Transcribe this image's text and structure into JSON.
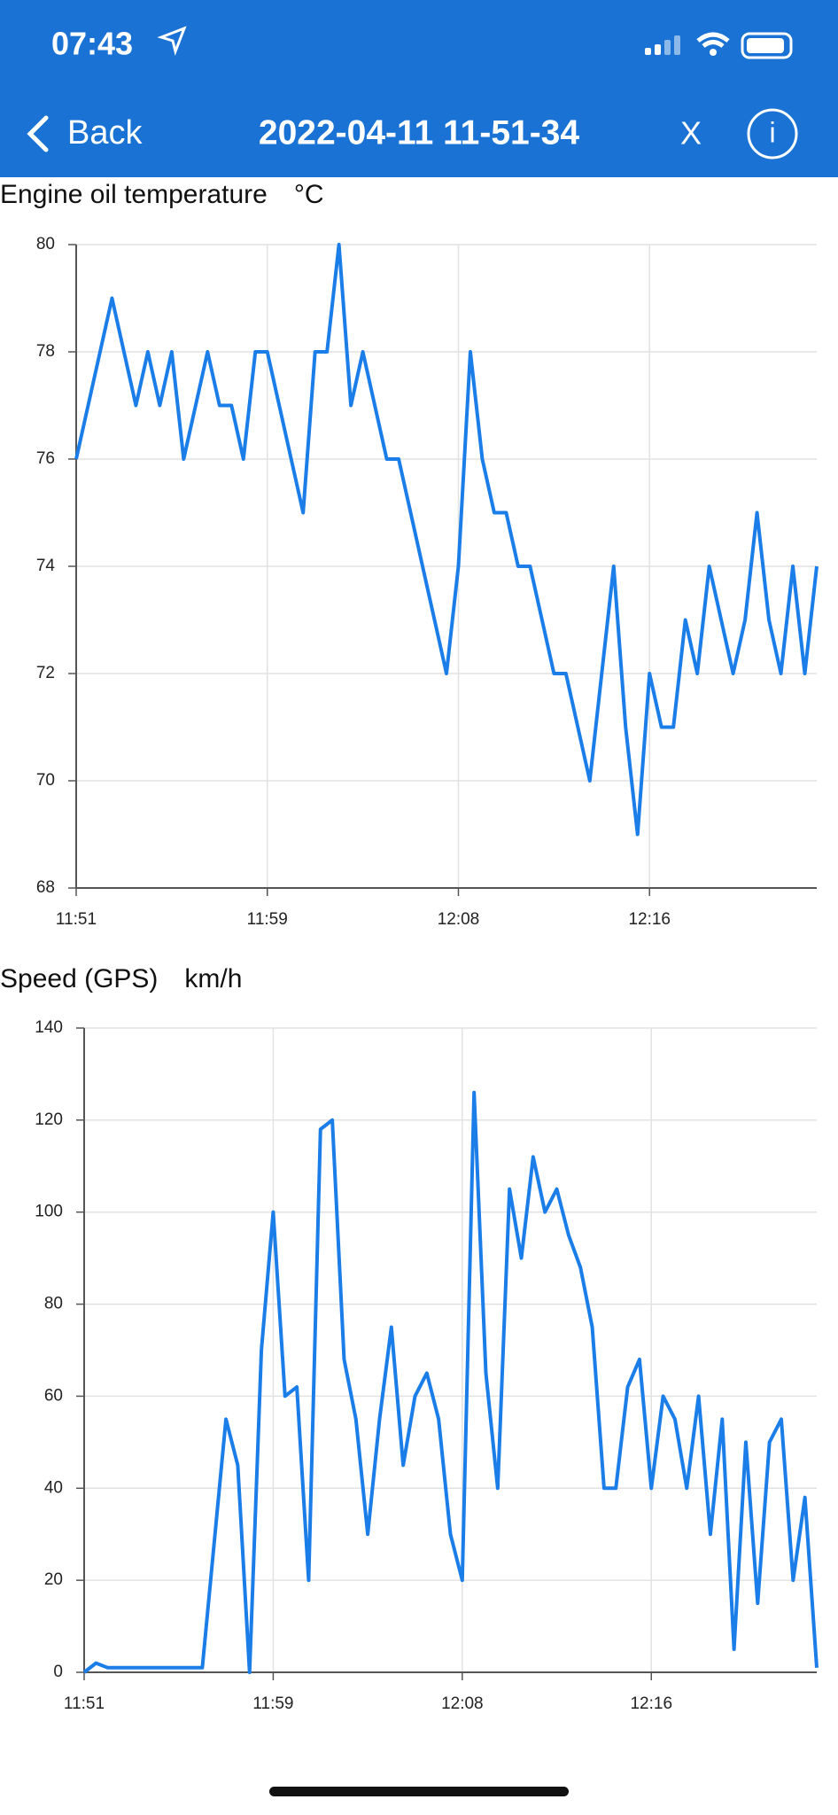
{
  "status_bar": {
    "time": "07:43"
  },
  "nav_bar": {
    "back": "Back",
    "title": "2022-04-11 11-51-34",
    "close": "X",
    "info": "i"
  },
  "chart_data": [
    {
      "type": "line",
      "title": "Engine oil temperature",
      "unit": "°C",
      "color": "#1a7de8",
      "grid": true,
      "categories": [
        "11:51",
        null,
        null,
        null,
        null,
        null,
        null,
        null,
        null,
        null,
        null,
        null,
        null,
        null,
        null,
        null,
        "11:59",
        null,
        null,
        null,
        null,
        null,
        null,
        null,
        null,
        null,
        null,
        null,
        null,
        null,
        null,
        null,
        "12:08",
        null,
        null,
        null,
        null,
        null,
        null,
        null,
        null,
        null,
        null,
        null,
        null,
        null,
        null,
        null,
        "12:16",
        null,
        null,
        null,
        null,
        null,
        null,
        null,
        null,
        null,
        null,
        null,
        null,
        null,
        null
      ],
      "values": [
        76,
        77,
        78,
        79,
        78,
        77,
        78,
        77,
        78,
        76,
        77,
        78,
        77,
        77,
        76,
        78,
        78,
        77,
        76,
        75,
        78,
        78,
        80,
        77,
        78,
        77,
        76,
        76,
        75,
        74,
        73,
        72,
        74,
        78,
        76,
        75,
        75,
        74,
        74,
        73,
        72,
        72,
        71,
        70,
        72,
        74,
        71,
        69,
        72,
        71,
        71,
        73,
        72,
        74,
        73,
        72,
        73,
        75,
        73,
        72,
        74,
        72,
        74
      ],
      "ylim": [
        68,
        80
      ],
      "yticks": [
        68,
        70,
        72,
        74,
        76,
        78,
        80
      ]
    },
    {
      "type": "line",
      "title": "Speed (GPS)",
      "unit": "km/h",
      "color": "#1a7de8",
      "grid": true,
      "categories": [
        "11:51",
        null,
        null,
        null,
        null,
        null,
        null,
        null,
        null,
        null,
        null,
        null,
        null,
        null,
        null,
        null,
        "11:59",
        null,
        null,
        null,
        null,
        null,
        null,
        null,
        null,
        null,
        null,
        null,
        null,
        null,
        null,
        null,
        "12:08",
        null,
        null,
        null,
        null,
        null,
        null,
        null,
        null,
        null,
        null,
        null,
        null,
        null,
        null,
        null,
        "12:16",
        null,
        null,
        null,
        null,
        null,
        null,
        null,
        null,
        null,
        null,
        null,
        null,
        null,
        null
      ],
      "values": [
        0,
        2,
        1,
        1,
        1,
        1,
        1,
        1,
        1,
        1,
        1,
        28,
        55,
        45,
        0,
        70,
        100,
        60,
        62,
        20,
        118,
        120,
        68,
        55,
        30,
        55,
        75,
        45,
        60,
        65,
        55,
        30,
        20,
        126,
        65,
        40,
        105,
        90,
        112,
        100,
        105,
        95,
        88,
        75,
        40,
        40,
        62,
        68,
        40,
        60,
        55,
        40,
        60,
        30,
        55,
        5,
        50,
        15,
        50,
        55,
        20,
        38,
        1
      ],
      "ylim": [
        0,
        140
      ],
      "yticks": [
        0,
        20,
        40,
        60,
        80,
        100,
        120,
        140
      ]
    }
  ]
}
